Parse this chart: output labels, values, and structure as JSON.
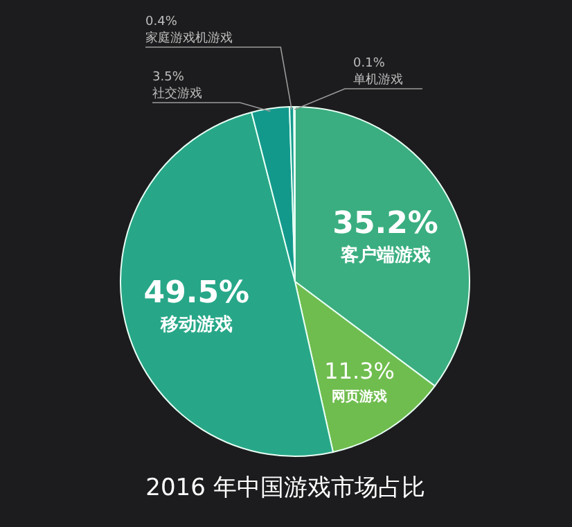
{
  "chart_data": {
    "type": "pie",
    "title": "2016 年中国游戏市场占比",
    "categories": [
      "客户端游戏",
      "网页游戏",
      "移动游戏",
      "社交游戏",
      "家庭游戏机游戏",
      "单机游戏"
    ],
    "values": [
      35.2,
      11.3,
      49.5,
      3.5,
      0.4,
      0.1
    ],
    "colors": [
      "#3aae80",
      "#6fbd4e",
      "#27a788",
      "#12998c",
      "#12998c",
      "#149a8c"
    ],
    "value_labels": [
      "35.2%",
      "11.3%",
      "49.5%",
      "3.5%",
      "0.4%",
      "0.1%"
    ]
  }
}
